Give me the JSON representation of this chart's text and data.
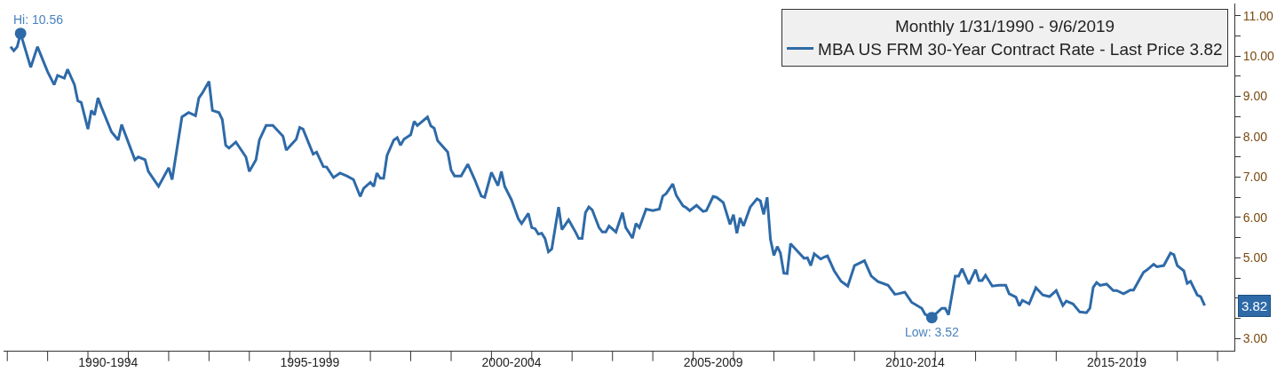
{
  "chart_data": {
    "type": "line",
    "legend_title": "Monthly 1/31/1990 - 9/6/2019",
    "legend": "top right",
    "grid": false,
    "line_style": "solid",
    "marker": "none",
    "xlim": [
      "1989-11-28",
      "2020-06-01"
    ],
    "xticks": [
      {
        "value": "1990-01-01",
        "label": null
      },
      {
        "value": "1991-01-01",
        "label": null
      },
      {
        "value": "1992-01-01",
        "label": null
      },
      {
        "value": "1993-01-01",
        "label": null
      },
      {
        "value": "1994-01-01",
        "label": null
      },
      {
        "value": "1995-01-01",
        "label": null
      },
      {
        "value": "1996-01-01",
        "label": null
      },
      {
        "value": "1997-01-01",
        "label": null
      },
      {
        "value": "1998-01-01",
        "label": null
      },
      {
        "value": "1999-01-01",
        "label": null
      },
      {
        "value": "2000-01-01",
        "label": null
      },
      {
        "value": "2001-01-01",
        "label": null
      },
      {
        "value": "2002-01-01",
        "label": null
      },
      {
        "value": "2003-01-01",
        "label": null
      },
      {
        "value": "2004-01-01",
        "label": null
      },
      {
        "value": "2005-01-01",
        "label": null
      },
      {
        "value": "2006-01-01",
        "label": null
      },
      {
        "value": "2007-01-01",
        "label": null
      },
      {
        "value": "2008-01-01",
        "label": null
      },
      {
        "value": "2009-01-01",
        "label": null
      },
      {
        "value": "2010-01-01",
        "label": null
      },
      {
        "value": "2011-01-01",
        "label": null
      },
      {
        "value": "2012-01-01",
        "label": null
      },
      {
        "value": "2013-01-01",
        "label": null
      },
      {
        "value": "2014-01-01",
        "label": null
      },
      {
        "value": "2015-01-01",
        "label": null
      },
      {
        "value": "2016-01-01",
        "label": null
      },
      {
        "value": "2017-01-01",
        "label": null
      },
      {
        "value": "2018-01-01",
        "label": null
      },
      {
        "value": "2019-01-01",
        "label": null
      },
      {
        "value": "2020-01-01",
        "label": null
      },
      {
        "value": "1992-07-02",
        "label": "1990-1994"
      },
      {
        "value": "1997-07-02",
        "label": "1995-1999"
      },
      {
        "value": "2002-07-02",
        "label": "2000-2004"
      },
      {
        "value": "2007-07-02",
        "label": "2005-2009"
      },
      {
        "value": "2012-07-02",
        "label": "2010-2014"
      },
      {
        "value": "2017-07-02",
        "label": "2015-2019"
      }
    ],
    "ylim": [
      2.7,
      11.3
    ],
    "yticks": [
      {
        "value": 3,
        "label": "3.00"
      },
      {
        "value": 3.5,
        "label": null
      },
      {
        "value": 4,
        "label": null
      },
      {
        "value": 4.5,
        "label": null
      },
      {
        "value": 5,
        "label": "5.00"
      },
      {
        "value": 5.5,
        "label": null
      },
      {
        "value": 6,
        "label": "6.00"
      },
      {
        "value": 6.5,
        "label": null
      },
      {
        "value": 7,
        "label": "7.00"
      },
      {
        "value": 7.5,
        "label": null
      },
      {
        "value": 8,
        "label": "8.00"
      },
      {
        "value": 8.5,
        "label": null
      },
      {
        "value": 9,
        "label": "9.00"
      },
      {
        "value": 9.5,
        "label": null
      },
      {
        "value": 10,
        "label": "10.00"
      },
      {
        "value": 10.5,
        "label": null
      },
      {
        "value": 11,
        "label": "11.00"
      }
    ],
    "annotations": [
      {
        "text": "Hi: 10.56",
        "x": "1990-05",
        "y": 10.56
      },
      {
        "text": "Low: 3.52",
        "x": "2012-12",
        "y": 3.52
      },
      {
        "text": "3.82",
        "x": "2019-09-06",
        "y": 3.82
      }
    ],
    "x": [
      "1990-01-31",
      "1990-03",
      "1990-04",
      "1990-05",
      "1990-08",
      "1990-10",
      "1991-01",
      "1991-03",
      "1991-04",
      "1991-06",
      "1991-07",
      "1991-09",
      "1991-10",
      "1991-11",
      "1992-01",
      "1992-02",
      "1992-03",
      "1992-04",
      "1992-05",
      "1992-08",
      "1992-10",
      "1992-11",
      "1993-03",
      "1993-04",
      "1993-06",
      "1993-07",
      "1993-10",
      "1994-01",
      "1994-02",
      "1994-05",
      "1994-07",
      "1994-09",
      "1994-10",
      "1994-11",
      "1995-01",
      "1995-02",
      "1995-04",
      "1995-05",
      "1995-06",
      "1995-07",
      "1995-09",
      "1995-12",
      "1996-01",
      "1996-03",
      "1996-04",
      "1996-06",
      "1996-08",
      "1996-11",
      "1996-12",
      "1997-03",
      "1997-04",
      "1997-05",
      "1997-08",
      "1997-09",
      "1997-11",
      "1997-12",
      "1998-02",
      "1998-04",
      "1998-06",
      "1998-08",
      "1998-10",
      "1998-11",
      "1999-01",
      "1999-02",
      "1999-03",
      "1999-04",
      "1999-05",
      "1999-06",
      "1999-08",
      "1999-09",
      "1999-10",
      "1999-11",
      "2000-01",
      "2000-02",
      "2000-03",
      "2000-06",
      "2000-07",
      "2000-08",
      "2000-09",
      "2000-12",
      "2001-01",
      "2001-02",
      "2001-04",
      "2001-06",
      "2001-08",
      "2001-10",
      "2001-11",
      "2002-01",
      "2002-03",
      "2002-04",
      "2002-05",
      "2002-07",
      "2002-09",
      "2002-10",
      "2002-12",
      "2003-01",
      "2003-02",
      "2003-03",
      "2003-04",
      "2003-05",
      "2003-06",
      "2003-07",
      "2003-09",
      "2003-10",
      "2003-12",
      "2004-02",
      "2004-03",
      "2004-04",
      "2004-05",
      "2004-06",
      "2004-07",
      "2004-09",
      "2004-10",
      "2004-11",
      "2004-12",
      "2005-02",
      "2005-04",
      "2005-05",
      "2005-07",
      "2005-08",
      "2005-09",
      "2005-11",
      "2006-01",
      "2006-03",
      "2006-04",
      "2006-05",
      "2006-07",
      "2006-08",
      "2006-10",
      "2006-11",
      "2006-12",
      "2007-02",
      "2007-04",
      "2007-05",
      "2007-07",
      "2007-08",
      "2007-10",
      "2007-12",
      "2008-01",
      "2008-02",
      "2008-03",
      "2008-04",
      "2008-06",
      "2008-08",
      "2008-09",
      "2008-10",
      "2008-11",
      "2008-12",
      "2009-01",
      "2009-02",
      "2009-03",
      "2009-04",
      "2009-05",
      "2009-06",
      "2009-08",
      "2009-10",
      "2009-11",
      "2009-12",
      "2010-01",
      "2010-03",
      "2010-04",
      "2010-05",
      "2010-07",
      "2010-09",
      "2010-11",
      "2011-01",
      "2011-04",
      "2011-06",
      "2011-08",
      "2011-11",
      "2012-01",
      "2012-02",
      "2012-04",
      "2012-06",
      "2012-09",
      "2012-10",
      "2012-12",
      "2013-03",
      "2013-04",
      "2013-05",
      "2013-07",
      "2013-08",
      "2013-09",
      "2013-11",
      "2014-01",
      "2014-02",
      "2014-03",
      "2014-04",
      "2014-06",
      "2014-08",
      "2014-10",
      "2014-11",
      "2015-01",
      "2015-02",
      "2015-03",
      "2015-05",
      "2015-07",
      "2015-09",
      "2015-11",
      "2016-01",
      "2016-03",
      "2016-04",
      "2016-06",
      "2016-08",
      "2016-10",
      "2016-11",
      "2016-12",
      "2017-01",
      "2017-02",
      "2017-04",
      "2017-06",
      "2017-07",
      "2017-09",
      "2017-11",
      "2017-12",
      "2018-03",
      "2018-04",
      "2018-06",
      "2018-07",
      "2018-09",
      "2018-11",
      "2018-12",
      "2019-01",
      "2019-03",
      "2019-04",
      "2019-05",
      "2019-07",
      "2019-08",
      "2019-09-06"
    ],
    "series": [
      {
        "name": "MBA US FRM 30-Year Contract Rate - Last Price 3.82",
        "color": "#2e6aa8",
        "values": [
          10.23,
          10.13,
          10.23,
          10.56,
          9.72,
          10.23,
          9.61,
          9.29,
          9.52,
          9.45,
          9.67,
          9.29,
          8.89,
          8.85,
          8.19,
          8.65,
          8.54,
          8.96,
          8.74,
          8.12,
          7.92,
          8.3,
          7.43,
          7.5,
          7.43,
          7.14,
          6.77,
          7.23,
          6.94,
          8.49,
          8.6,
          8.52,
          8.96,
          9.08,
          9.37,
          8.65,
          8.6,
          8.43,
          7.79,
          7.72,
          7.87,
          7.5,
          7.14,
          7.43,
          7.92,
          8.28,
          8.28,
          8.01,
          7.67,
          7.94,
          8.23,
          8.19,
          7.57,
          7.62,
          7.26,
          7.25,
          6.99,
          7.1,
          7.03,
          6.94,
          6.52,
          6.72,
          6.87,
          6.77,
          7.1,
          6.97,
          6.97,
          7.54,
          7.92,
          7.98,
          7.79,
          7.94,
          8.05,
          8.38,
          8.28,
          8.49,
          8.27,
          8.21,
          7.9,
          7.62,
          7.17,
          7.03,
          7.03,
          7.32,
          6.95,
          6.53,
          6.5,
          7.12,
          6.79,
          7.14,
          6.77,
          6.44,
          5.97,
          5.85,
          6.1,
          5.75,
          5.72,
          5.59,
          5.61,
          5.48,
          5.15,
          5.22,
          6.26,
          5.7,
          5.94,
          5.64,
          5.48,
          5.48,
          6.12,
          6.26,
          6.19,
          5.75,
          5.64,
          5.64,
          5.79,
          5.64,
          6.12,
          5.75,
          5.49,
          5.85,
          5.75,
          6.21,
          6.17,
          6.21,
          6.53,
          6.59,
          6.83,
          6.55,
          6.29,
          6.24,
          6.17,
          6.3,
          6.15,
          6.17,
          6.52,
          6.5,
          6.37,
          5.83,
          6.07,
          5.61,
          5.99,
          5.79,
          6.26,
          6.46,
          6.41,
          6.08,
          6.5,
          5.46,
          5.06,
          5.28,
          5.12,
          4.62,
          4.61,
          5.35,
          5.17,
          4.99,
          5.0,
          4.81,
          5.1,
          4.97,
          5.02,
          5.05,
          4.68,
          4.42,
          4.3,
          4.81,
          4.93,
          4.55,
          4.41,
          4.32,
          4.1,
          4.11,
          4.15,
          3.9,
          3.75,
          3.6,
          3.52,
          3.75,
          3.75,
          3.59,
          4.55,
          4.55,
          4.73,
          4.35,
          4.71,
          4.44,
          4.44,
          4.57,
          4.3,
          4.32,
          4.32,
          4.11,
          4.03,
          3.81,
          3.95,
          3.86,
          4.26,
          4.08,
          4.04,
          4.19,
          3.82,
          3.93,
          3.86,
          3.66,
          3.64,
          3.75,
          4.27,
          4.39,
          4.32,
          4.35,
          4.19,
          4.19,
          4.11,
          4.2,
          4.2,
          4.64,
          4.7,
          4.84,
          4.78,
          4.81,
          5.12,
          5.08,
          4.81,
          4.68,
          4.37,
          4.42,
          4.08,
          4.04,
          3.82
        ]
      }
    ]
  }
}
